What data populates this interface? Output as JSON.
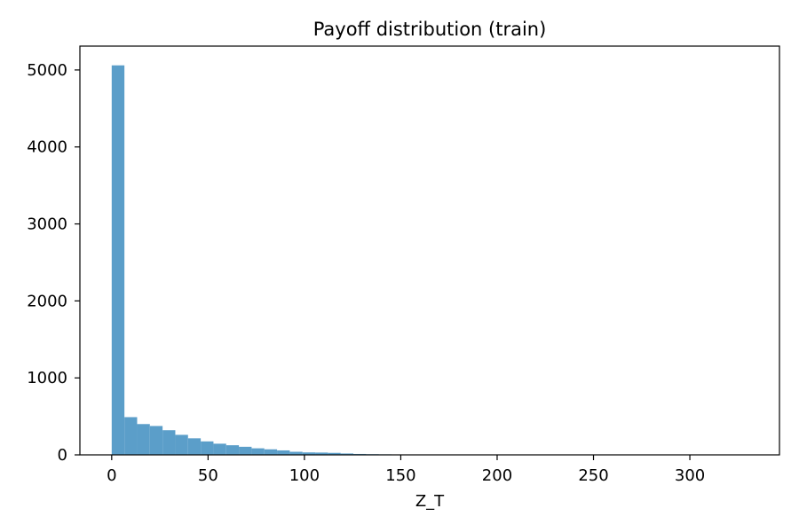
{
  "chart_data": {
    "type": "bar",
    "title": "Payoff distribution (train)",
    "xlabel": "Z_T",
    "ylabel": "",
    "xlim": [
      -16.5,
      346.5
    ],
    "ylim": [
      0,
      5310
    ],
    "xticks": [
      0,
      50,
      100,
      150,
      200,
      250,
      300
    ],
    "yticks": [
      0,
      1000,
      2000,
      3000,
      4000,
      5000
    ],
    "bin_width": 6.6,
    "bin_start": 0,
    "color": "#5b9ec9",
    "grid": false,
    "values": [
      5060,
      490,
      400,
      375,
      320,
      260,
      215,
      175,
      145,
      125,
      105,
      85,
      72,
      58,
      40,
      32,
      30,
      26,
      18,
      12,
      9,
      7,
      5,
      4,
      3,
      3,
      2,
      2,
      1,
      1,
      1,
      1,
      1,
      0,
      0,
      0,
      0,
      0,
      0,
      0,
      0,
      0,
      0,
      0,
      0,
      0,
      0,
      0,
      0,
      1
    ]
  }
}
